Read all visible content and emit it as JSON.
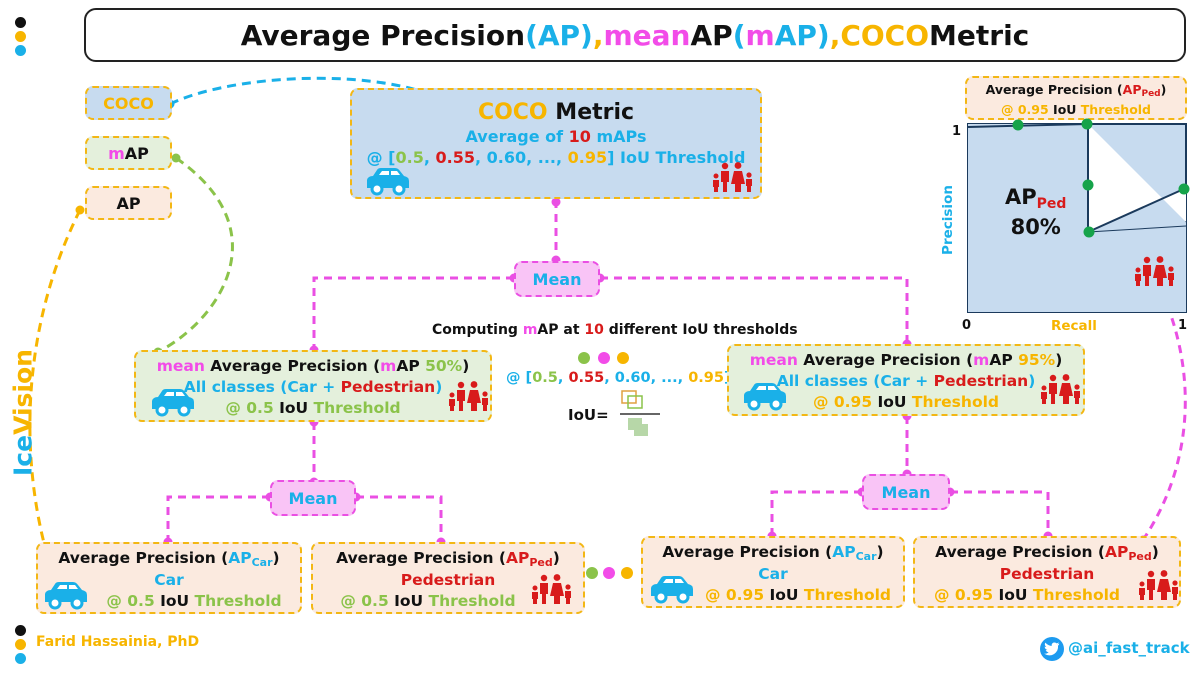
{
  "title": {
    "p1": "Average Precision ",
    "p2": "(AP)",
    "p3": ", ",
    "p4": "mean",
    "p5": " AP ",
    "p6": "(",
    "p7": "m",
    "p8": "AP)",
    "p9": ", ",
    "p10": "COCO",
    "p11": " Metric"
  },
  "legend": {
    "coco": "COCO",
    "map_m": "m",
    "map_ap": "AP",
    "ap": "AP"
  },
  "side_brand": {
    "ice": "Ice",
    "vision": "Vision"
  },
  "coco_box": {
    "l1a": "COCO",
    "l1b": " Metric",
    "l2a": "Average of ",
    "l2b": "10",
    "l2c": " mAPs",
    "l3": [
      "@ [",
      "0.5",
      ", ",
      "0.55",
      ", ",
      "0.60",
      ", ..., ",
      "0.95",
      "] IoU Threshold"
    ]
  },
  "mean_label": "Mean",
  "computing": {
    "a": "Computing ",
    "b": "m",
    "c": "AP at ",
    "d": "10",
    "e": " different IoU thresholds"
  },
  "iou_list": [
    "@ [",
    "0.5",
    ", ",
    "0.55",
    ", ",
    "0.60",
    ", ..., ",
    "0.95",
    "]"
  ],
  "iou_eq": "IoU=",
  "map50": {
    "a": "mean",
    "b": " Average Precision (",
    "c": "m",
    "d": "AP ",
    "e": "50%",
    "f": ")",
    "g": "All classes (Car + ",
    "h": "Pedestrian",
    "i": ")",
    "j": "@ 0.5",
    "k": " IoU ",
    "l": "Threshold"
  },
  "map95": {
    "a": "mean",
    "b": " Average Precision (",
    "c": "m",
    "d": "AP ",
    "e": "95%",
    "f": ")",
    "g": "All classes (Car + ",
    "h": "Pedestrian",
    "i": ")",
    "j": "@ 0.95",
    "k": " IoU ",
    "l": "Threshold"
  },
  "ap_car50": {
    "a": "Average Precision (",
    "b": "AP",
    "c": "Car",
    "d": ")",
    "e": "Car",
    "f": "@ 0.5",
    "g": " IoU ",
    "h": "Threshold"
  },
  "ap_ped50": {
    "a": "Average Precision (",
    "b": "AP",
    "c": "Ped",
    "d": ")",
    "e": "Pedestrian",
    "f": "@ 0.5",
    "g": " IoU ",
    "h": "Threshold"
  },
  "ap_car95": {
    "a": "Average Precision (",
    "b": "AP",
    "c": "Car",
    "d": ")",
    "e": "Car",
    "f": "@ 0.95",
    "g": " IoU ",
    "h": "Threshold"
  },
  "ap_ped95": {
    "a": "Average Precision (",
    "b": "AP",
    "c": "Ped",
    "d": ")",
    "e": "Pedestrian",
    "f": "@ 0.95",
    "g": " IoU ",
    "h": "Threshold"
  },
  "pr_chart": {
    "head_a": "Average Precision (",
    "head_b": "AP",
    "head_c": "Ped",
    "head_d": ")",
    "head_e": "@ 0.95",
    "head_f": " IoU ",
    "head_g": "Threshold",
    "ylabel": "Precision",
    "xlabel": "Recall",
    "y_tick": "1",
    "x_tick0": "0",
    "x_tick1": "1",
    "ap_a": "AP",
    "ap_b": "Ped",
    "ap_value": "80%"
  },
  "author": "Farid Hassainia, PhD",
  "handle": "@ai_fast_track",
  "colors": {
    "blue": "#1ab0e8",
    "pink": "#f24ce8",
    "yellow": "#f7b500",
    "green": "#8bc34a",
    "red": "#d81b1b"
  }
}
